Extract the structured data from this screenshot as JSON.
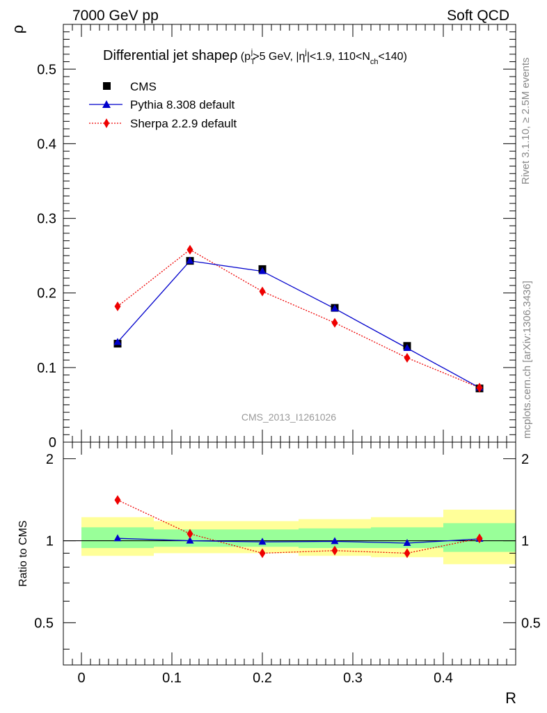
{
  "header": {
    "left": "7000 GeV pp",
    "right": "Soft QCD"
  },
  "side_labels": {
    "rivet": "Rivet 3.1.10, ≥ 2.5M events",
    "mcplots": "mcplots.cern.ch [arXiv:1306.3436]"
  },
  "watermark": "CMS_2013_I1261026",
  "colors": {
    "cms": "#000000",
    "pythia": "#0000cc",
    "sherpa": "#ee0000",
    "band_inner": "#99ff99",
    "band_outer": "#ffff99"
  },
  "chart_data": [
    {
      "type": "line",
      "title": {
        "main": "Differential jet shape",
        "symbol": "ρ",
        "cuts": " (p",
        "cut_sub_T": "T",
        "cut_sup_j": "j",
        "cut_mid": ">5 GeV, |η",
        "cut_sup_j2": "j",
        "cut_end": "|<1.9, 110<N",
        "cut_sub_ch": "ch",
        "cut_close": "<140)"
      },
      "ylabel": "ρ",
      "xlim": [
        -0.02,
        0.48
      ],
      "ylim": [
        0,
        0.56
      ],
      "y_ticks": [
        "0",
        "0.1",
        "0.2",
        "0.3",
        "0.4",
        "0.5"
      ],
      "y_tick_values": [
        0,
        0.1,
        0.2,
        0.3,
        0.4,
        0.5
      ],
      "legend_position": "top-left",
      "series": [
        {
          "name": "CMS",
          "marker": "square",
          "x": [
            0.04,
            0.12,
            0.2,
            0.28,
            0.36,
            0.44
          ],
          "y": [
            0.132,
            0.243,
            0.232,
            0.18,
            0.129,
            0.072
          ],
          "x_bin_edges": [
            0.0,
            0.08,
            0.16,
            0.24,
            0.32,
            0.4,
            0.48
          ]
        },
        {
          "name": "Pythia 8.308 default",
          "marker": "triangle",
          "x": [
            0.04,
            0.12,
            0.2,
            0.28,
            0.36,
            0.44
          ],
          "y": [
            0.134,
            0.243,
            0.229,
            0.179,
            0.126,
            0.073
          ]
        },
        {
          "name": "Sherpa 2.2.9 default",
          "marker": "diamond",
          "x": [
            0.04,
            0.12,
            0.2,
            0.28,
            0.36,
            0.44
          ],
          "y": [
            0.182,
            0.258,
            0.202,
            0.16,
            0.113,
            0.073
          ],
          "yerr": [
            0.005,
            0.005,
            0.003,
            0.003,
            0.003,
            0.002
          ]
        }
      ]
    },
    {
      "type": "line",
      "ylabel": "Ratio to CMS",
      "xlabel": "R",
      "xlim": [
        -0.02,
        0.48
      ],
      "ylim": [
        0.35,
        2.3
      ],
      "y_ticks": [
        "0.5",
        "1",
        "2"
      ],
      "y_tick_values": [
        0.5,
        1,
        2
      ],
      "x_ticks": [
        "0",
        "0.1",
        "0.2",
        "0.3",
        "0.4"
      ],
      "x_tick_values": [
        0,
        0.1,
        0.2,
        0.3,
        0.4
      ],
      "bands": {
        "x_edges": [
          0.0,
          0.08,
          0.16,
          0.24,
          0.32,
          0.4,
          0.48
        ],
        "outer_low": [
          0.88,
          0.9,
          0.9,
          0.88,
          0.87,
          0.82
        ],
        "outer_high": [
          1.22,
          1.18,
          1.18,
          1.2,
          1.22,
          1.3
        ],
        "inner_low": [
          0.94,
          0.95,
          0.95,
          0.94,
          0.94,
          0.91
        ],
        "inner_high": [
          1.12,
          1.1,
          1.1,
          1.11,
          1.12,
          1.16
        ]
      },
      "series": [
        {
          "name": "Pythia 8.308 default",
          "x": [
            0.04,
            0.12,
            0.2,
            0.28,
            0.36,
            0.44
          ],
          "y": [
            1.02,
            1.0,
            0.99,
            0.995,
            0.98,
            1.015
          ]
        },
        {
          "name": "Sherpa 2.2.9 default",
          "x": [
            0.04,
            0.12,
            0.2,
            0.28,
            0.36,
            0.44
          ],
          "y": [
            1.41,
            1.06,
            0.9,
            0.92,
            0.9,
            1.02
          ],
          "yerr": [
            0.03,
            0.02,
            0.01,
            0.01,
            0.01,
            0.01
          ]
        }
      ]
    }
  ]
}
